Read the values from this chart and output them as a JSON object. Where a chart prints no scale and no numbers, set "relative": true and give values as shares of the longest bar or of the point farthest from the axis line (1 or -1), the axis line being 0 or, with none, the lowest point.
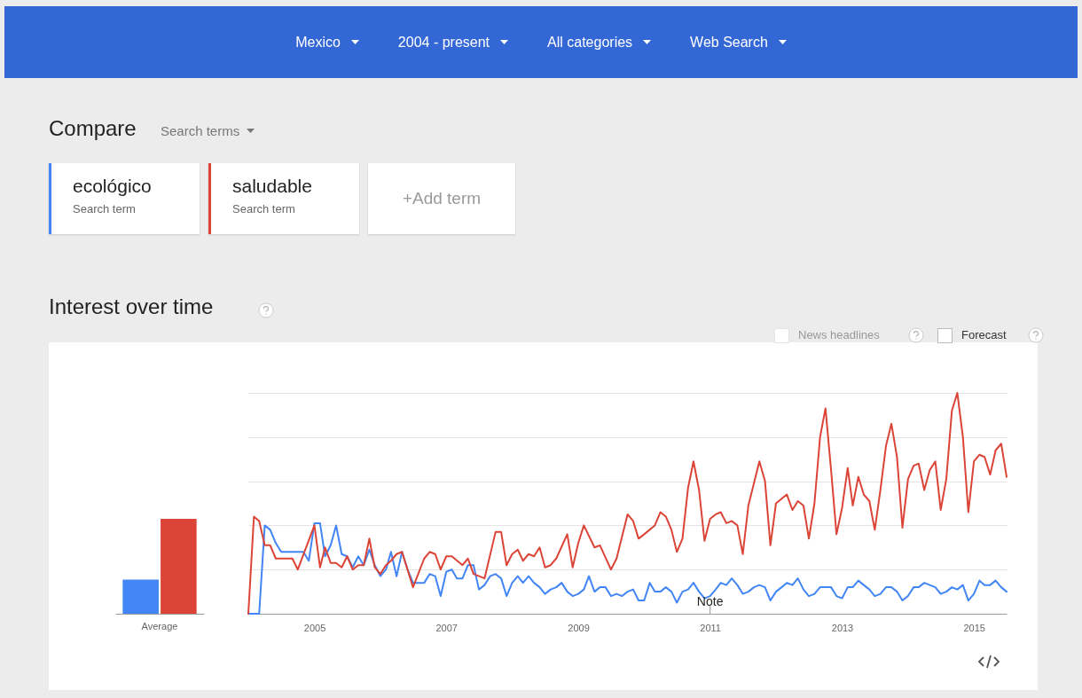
{
  "chart_data": [
    {
      "type": "other",
      "title": "Compare",
      "annotations": [
        "Mexico",
        "2004 - present",
        "All categories",
        "Web Search",
        "Search terms",
        "Search term",
        "+Add term"
      ]
    },
    {
      "type": "bar",
      "relative": true,
      "categories": [
        "Average"
      ],
      "series": [
        {
          "color": "#4285f4",
          "values": [
            0.36
          ]
        },
        {
          "color": "#db4437",
          "values": [
            1
          ]
        }
      ]
    },
    {
      "type": "line",
      "title": "Interest over time",
      "relative": true,
      "grid": "y",
      "xlim": [
        "2004-01",
        "2015-07"
      ],
      "xticks": [
        "2005",
        "2007",
        "2009",
        "2011",
        "2013",
        "2015"
      ],
      "annotations": [
        "News headlines",
        "Forecast",
        {
          "text": "Note",
          "x": "2011-01"
        }
      ],
      "series": [
        {
          "name": "ecológico",
          "color": "#4285f4",
          "x": [
            "2004-01",
            "2004-03",
            "2004-04",
            "2004-05",
            "2004-06",
            "2004-07",
            "2004-11",
            "2004-12",
            "2005-01",
            "2005-02",
            "2005-03",
            "2005-04",
            "2005-05",
            "2005-06",
            "2005-07",
            "2005-08",
            "2005-09",
            "2005-10",
            "2005-11",
            "2005-12",
            "2006-01",
            "2006-02",
            "2006-03",
            "2006-04",
            "2006-05",
            "2006-06",
            "2006-07",
            "2006-09",
            "2006-10",
            "2006-11",
            "2006-12",
            "2007-01",
            "2007-02",
            "2007-03",
            "2007-04",
            "2007-05",
            "2007-06",
            "2007-07",
            "2007-08",
            "2007-09",
            "2007-10",
            "2007-11",
            "2007-12",
            "2008-01",
            "2008-02",
            "2008-03",
            "2008-04",
            "2008-05",
            "2008-06",
            "2008-07",
            "2008-08",
            "2008-09",
            "2008-10",
            "2008-11",
            "2008-12",
            "2009-01",
            "2009-02",
            "2009-03",
            "2009-04",
            "2009-05",
            "2009-06",
            "2009-07",
            "2009-08",
            "2009-09",
            "2009-10",
            "2009-11",
            "2009-12",
            "2010-01",
            "2010-02",
            "2010-03",
            "2010-04",
            "2010-05",
            "2010-06",
            "2010-07",
            "2010-08",
            "2010-09",
            "2010-10",
            "2010-11",
            "2010-12",
            "2011-01",
            "2011-02",
            "2011-03",
            "2011-04",
            "2011-05",
            "2011-06",
            "2011-07",
            "2011-08",
            "2011-09",
            "2011-10",
            "2011-11",
            "2011-12",
            "2012-01",
            "2012-02",
            "2012-03",
            "2012-04",
            "2012-05",
            "2012-06",
            "2012-07",
            "2012-08",
            "2012-09",
            "2012-11",
            "2012-12",
            "2013-01",
            "2013-02",
            "2013-03",
            "2013-04",
            "2013-05",
            "2013-06",
            "2013-07",
            "2013-08",
            "2013-09",
            "2013-10",
            "2013-11",
            "2013-12",
            "2014-01",
            "2014-02",
            "2014-03",
            "2014-04",
            "2014-05",
            "2014-06",
            "2014-07",
            "2014-08",
            "2014-09",
            "2014-10",
            "2014-11",
            "2014-12",
            "2015-01",
            "2015-02",
            "2015-03",
            "2015-04",
            "2015-05",
            "2015-06",
            "2015-07"
          ],
          "values": [
            0,
            0,
            0.4,
            0.38,
            0.32,
            0.28,
            0.28,
            0.24,
            0.41,
            0.41,
            0.26,
            0.31,
            0.4,
            0.27,
            0.26,
            0.21,
            0.26,
            0.22,
            0.29,
            0.22,
            0.17,
            0.2,
            0.28,
            0.17,
            0.28,
            0.2,
            0.14,
            0.14,
            0.18,
            0.17,
            0.08,
            0.19,
            0.2,
            0.16,
            0.16,
            0.22,
            0.22,
            0.11,
            0.13,
            0.17,
            0.18,
            0.16,
            0.08,
            0.14,
            0.17,
            0.14,
            0.17,
            0.14,
            0.12,
            0.09,
            0.11,
            0.12,
            0.14,
            0.1,
            0.08,
            0.09,
            0.11,
            0.17,
            0.1,
            0.12,
            0.12,
            0.08,
            0.09,
            0.08,
            0.1,
            0.11,
            0.06,
            0.06,
            0.14,
            0.1,
            0.1,
            0.12,
            0.1,
            0.05,
            0.1,
            0.11,
            0.14,
            0.1,
            0.07,
            0.08,
            0.11,
            0.14,
            0.13,
            0.16,
            0.13,
            0.09,
            0.1,
            0.12,
            0.13,
            0.12,
            0.06,
            0.1,
            0.12,
            0.14,
            0.13,
            0.16,
            0.11,
            0.08,
            0.09,
            0.12,
            0.12,
            0.08,
            0.07,
            0.12,
            0.12,
            0.15,
            0.13,
            0.11,
            0.08,
            0.09,
            0.12,
            0.12,
            0.1,
            0.06,
            0.08,
            0.12,
            0.12,
            0.14,
            0.13,
            0.12,
            0.09,
            0.1,
            0.12,
            0.11,
            0.13,
            0.06,
            0.09,
            0.15,
            0.13,
            0.13,
            0.15,
            0.12,
            0.1
          ]
        },
        {
          "name": "saludable",
          "color": "#db4437",
          "x": [
            "2004-01",
            "2004-02",
            "2004-03",
            "2004-04",
            "2004-05",
            "2004-06",
            "2004-09",
            "2004-10",
            "2005-01",
            "2005-02",
            "2005-03",
            "2005-04",
            "2005-05",
            "2005-06",
            "2005-07",
            "2005-08",
            "2005-09",
            "2005-10",
            "2005-11",
            "2005-12",
            "2006-01",
            "2006-02",
            "2006-03",
            "2006-04",
            "2006-05",
            "2006-07",
            "2006-09",
            "2006-10",
            "2006-11",
            "2006-12",
            "2007-01",
            "2007-02",
            "2007-04",
            "2007-05",
            "2007-06",
            "2007-08",
            "2007-10",
            "2007-11",
            "2007-12",
            "2008-01",
            "2008-02",
            "2008-03",
            "2008-04",
            "2008-05",
            "2008-06",
            "2008-07",
            "2008-08",
            "2008-09",
            "2008-11",
            "2008-12",
            "2009-01",
            "2009-02",
            "2009-04",
            "2009-05",
            "2009-07",
            "2009-08",
            "2009-10",
            "2009-11",
            "2009-12",
            "2010-01",
            "2010-03",
            "2010-04",
            "2010-05",
            "2010-06",
            "2010-07",
            "2010-08",
            "2010-09",
            "2010-10",
            "2010-11",
            "2010-12",
            "2011-01",
            "2011-02",
            "2011-03",
            "2011-04",
            "2011-05",
            "2011-06",
            "2011-07",
            "2011-08",
            "2011-10",
            "2011-11",
            "2011-12",
            "2012-01",
            "2012-03",
            "2012-04",
            "2012-05",
            "2012-06",
            "2012-07",
            "2012-08",
            "2012-09",
            "2012-10",
            "2012-11",
            "2012-12",
            "2013-01",
            "2013-02",
            "2013-03",
            "2013-04",
            "2013-05",
            "2013-06",
            "2013-07",
            "2013-08",
            "2013-09",
            "2013-10",
            "2013-11",
            "2013-12",
            "2014-01",
            "2014-02",
            "2014-03",
            "2014-04",
            "2014-05",
            "2014-06",
            "2014-07",
            "2014-08",
            "2014-09",
            "2014-10",
            "2014-11",
            "2014-12",
            "2015-01",
            "2015-02",
            "2015-03",
            "2015-04",
            "2015-05",
            "2015-06",
            "2015-07"
          ],
          "values": [
            0,
            0.44,
            0.42,
            0.31,
            0.31,
            0.25,
            0.25,
            0.2,
            0.4,
            0.21,
            0.3,
            0.23,
            0.23,
            0.21,
            0.26,
            0.2,
            0.22,
            0.22,
            0.34,
            0.21,
            0.18,
            0.22,
            0.24,
            0.27,
            0.28,
            0.12,
            0.25,
            0.28,
            0.27,
            0.2,
            0.26,
            0.26,
            0.22,
            0.25,
            0.18,
            0.16,
            0.37,
            0.37,
            0.22,
            0.27,
            0.29,
            0.24,
            0.27,
            0.26,
            0.3,
            0.21,
            0.22,
            0.25,
            0.36,
            0.21,
            0.32,
            0.4,
            0.3,
            0.31,
            0.2,
            0.25,
            0.45,
            0.42,
            0.34,
            0.36,
            0.4,
            0.46,
            0.44,
            0.38,
            0.28,
            0.34,
            0.57,
            0.69,
            0.56,
            0.33,
            0.43,
            0.45,
            0.46,
            0.41,
            0.42,
            0.4,
            0.27,
            0.49,
            0.69,
            0.6,
            0.31,
            0.5,
            0.54,
            0.47,
            0.51,
            0.49,
            0.34,
            0.5,
            0.8,
            0.93,
            0.65,
            0.36,
            0.48,
            0.66,
            0.49,
            0.62,
            0.54,
            0.51,
            0.38,
            0.56,
            0.76,
            0.86,
            0.71,
            0.39,
            0.61,
            0.67,
            0.68,
            0.56,
            0.65,
            0.69,
            0.47,
            0.61,
            0.92,
            1.0,
            0.8,
            0.46,
            0.69,
            0.72,
            0.71,
            0.63,
            0.74,
            0.77,
            0.62
          ]
        }
      ]
    }
  ]
}
